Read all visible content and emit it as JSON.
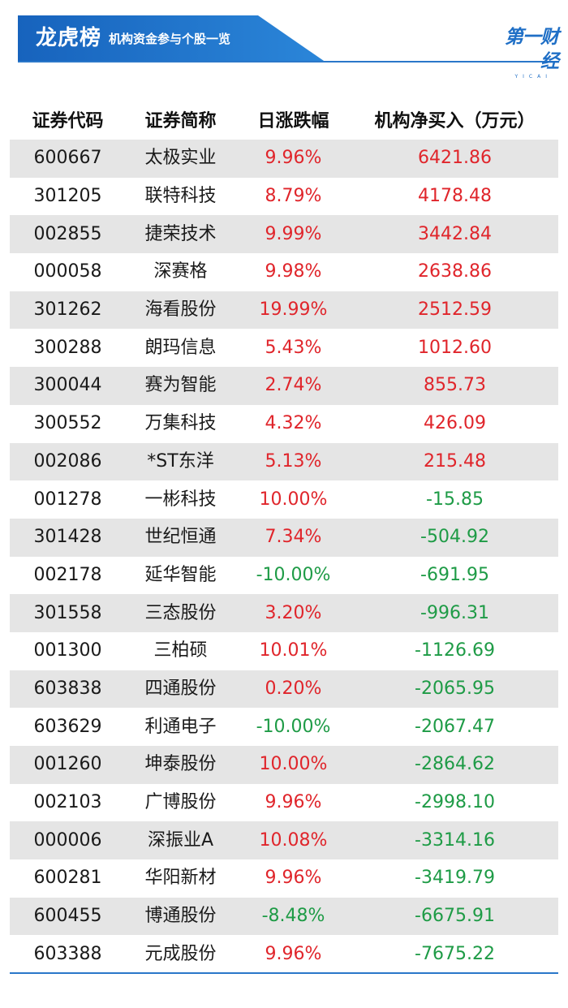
{
  "header": {
    "title": "龙虎榜",
    "subtitle": "机构资金参与个股一览",
    "logo": "第一财经",
    "logo_sub": "YICAI",
    "accent_color": "#1f6fc6"
  },
  "table": {
    "columns": [
      "证券代码",
      "证券简称",
      "日涨跌幅",
      "机构净买入（万元）"
    ],
    "rows": [
      {
        "code": "600667",
        "name": "太极实业",
        "change": "9.96%",
        "net_buy": "6421.86",
        "change_dir": "up",
        "buy_dir": "up"
      },
      {
        "code": "301205",
        "name": "联特科技",
        "change": "8.79%",
        "net_buy": "4178.48",
        "change_dir": "up",
        "buy_dir": "up"
      },
      {
        "code": "002855",
        "name": "捷荣技术",
        "change": "9.99%",
        "net_buy": "3442.84",
        "change_dir": "up",
        "buy_dir": "up"
      },
      {
        "code": "000058",
        "name": "深赛格",
        "change": "9.98%",
        "net_buy": "2638.86",
        "change_dir": "up",
        "buy_dir": "up"
      },
      {
        "code": "301262",
        "name": "海看股份",
        "change": "19.99%",
        "net_buy": "2512.59",
        "change_dir": "up",
        "buy_dir": "up"
      },
      {
        "code": "300288",
        "name": "朗玛信息",
        "change": "5.43%",
        "net_buy": "1012.60",
        "change_dir": "up",
        "buy_dir": "up"
      },
      {
        "code": "300044",
        "name": "赛为智能",
        "change": "2.74%",
        "net_buy": "855.73",
        "change_dir": "up",
        "buy_dir": "up"
      },
      {
        "code": "300552",
        "name": "万集科技",
        "change": "4.32%",
        "net_buy": "426.09",
        "change_dir": "up",
        "buy_dir": "up"
      },
      {
        "code": "002086",
        "name": "*ST东洋",
        "change": "5.13%",
        "net_buy": "215.48",
        "change_dir": "up",
        "buy_dir": "up"
      },
      {
        "code": "001278",
        "name": "一彬科技",
        "change": "10.00%",
        "net_buy": "-15.85",
        "change_dir": "up",
        "buy_dir": "down"
      },
      {
        "code": "301428",
        "name": "世纪恒通",
        "change": "7.34%",
        "net_buy": "-504.92",
        "change_dir": "up",
        "buy_dir": "down"
      },
      {
        "code": "002178",
        "name": "延华智能",
        "change": "-10.00%",
        "net_buy": "-691.95",
        "change_dir": "down",
        "buy_dir": "down"
      },
      {
        "code": "301558",
        "name": "三态股份",
        "change": "3.20%",
        "net_buy": "-996.31",
        "change_dir": "up",
        "buy_dir": "down"
      },
      {
        "code": "001300",
        "name": "三柏硕",
        "change": "10.01%",
        "net_buy": "-1126.69",
        "change_dir": "up",
        "buy_dir": "down"
      },
      {
        "code": "603838",
        "name": "四通股份",
        "change": "0.20%",
        "net_buy": "-2065.95",
        "change_dir": "up",
        "buy_dir": "down"
      },
      {
        "code": "603629",
        "name": "利通电子",
        "change": "-10.00%",
        "net_buy": "-2067.47",
        "change_dir": "down",
        "buy_dir": "down"
      },
      {
        "code": "001260",
        "name": "坤泰股份",
        "change": "10.00%",
        "net_buy": "-2864.62",
        "change_dir": "up",
        "buy_dir": "down"
      },
      {
        "code": "002103",
        "name": "广博股份",
        "change": "9.96%",
        "net_buy": "-2998.10",
        "change_dir": "up",
        "buy_dir": "down"
      },
      {
        "code": "000006",
        "name": "深振业A",
        "change": "10.08%",
        "net_buy": "-3314.16",
        "change_dir": "up",
        "buy_dir": "down"
      },
      {
        "code": "600281",
        "name": "华阳新材",
        "change": "9.96%",
        "net_buy": "-3419.79",
        "change_dir": "up",
        "buy_dir": "down"
      },
      {
        "code": "600455",
        "name": "博通股份",
        "change": "-8.48%",
        "net_buy": "-6675.91",
        "change_dir": "down",
        "buy_dir": "down"
      },
      {
        "code": "603388",
        "name": "元成股份",
        "change": "9.96%",
        "net_buy": "-7675.22",
        "change_dir": "up",
        "buy_dir": "down"
      }
    ]
  }
}
